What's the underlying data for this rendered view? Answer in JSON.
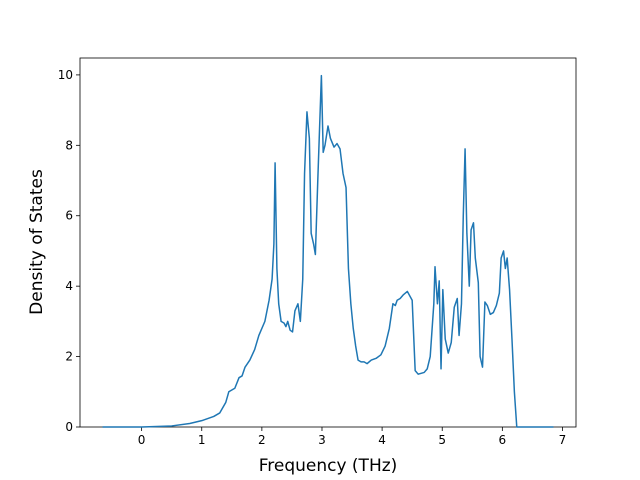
{
  "chart_data": {
    "type": "line",
    "xlabel": "Frequency (THz)",
    "ylabel": "Density of States",
    "xlim": [
      -1.025,
      7.225
    ],
    "xticks": [
      0,
      1,
      2,
      3,
      4,
      5,
      6,
      7
    ],
    "ylim": [
      0,
      10.48
    ],
    "yticks": [
      0,
      2,
      4,
      6,
      8,
      10
    ],
    "series": [
      {
        "color": "#1f77b4",
        "x": [
          -0.65,
          0,
          0.5,
          0.8,
          1.0,
          1.2,
          1.3,
          1.4,
          1.45,
          1.55,
          1.62,
          1.67,
          1.72,
          1.8,
          1.88,
          1.95,
          2.05,
          2.12,
          2.17,
          2.2,
          2.22,
          2.25,
          2.28,
          2.32,
          2.37,
          2.4,
          2.43,
          2.47,
          2.51,
          2.55,
          2.6,
          2.64,
          2.68,
          2.71,
          2.75,
          2.79,
          2.82,
          2.86,
          2.89,
          2.93,
          2.96,
          2.99,
          3.02,
          3.05,
          3.1,
          3.14,
          3.2,
          3.25,
          3.3,
          3.35,
          3.4,
          3.44,
          3.48,
          3.52,
          3.56,
          3.6,
          3.65,
          3.7,
          3.75,
          3.82,
          3.9,
          3.98,
          4.05,
          4.12,
          4.18,
          4.22,
          4.25,
          4.3,
          4.35,
          4.42,
          4.5,
          4.55,
          4.6,
          4.7,
          4.75,
          4.8,
          4.86,
          4.88,
          4.92,
          4.95,
          4.98,
          5.01,
          5.05,
          5.1,
          5.15,
          5.2,
          5.25,
          5.28,
          5.32,
          5.35,
          5.38,
          5.41,
          5.45,
          5.48,
          5.52,
          5.55,
          5.6,
          5.63,
          5.67,
          5.71,
          5.75,
          5.8,
          5.85,
          5.9,
          5.95,
          5.98,
          6.02,
          6.05,
          6.08,
          6.12,
          6.16,
          6.2,
          6.24,
          6.85
        ],
        "values": [
          0,
          0,
          0.03,
          0.1,
          0.18,
          0.3,
          0.4,
          0.7,
          1.0,
          1.1,
          1.4,
          1.45,
          1.7,
          1.9,
          2.2,
          2.6,
          3.0,
          3.6,
          4.2,
          5.2,
          7.5,
          4.5,
          3.5,
          3.0,
          2.95,
          2.85,
          3.0,
          2.75,
          2.7,
          3.3,
          3.5,
          3.0,
          4.2,
          7.2,
          8.95,
          8.2,
          5.5,
          5.2,
          4.9,
          7.0,
          8.5,
          9.98,
          7.8,
          8.0,
          8.55,
          8.2,
          7.95,
          8.05,
          7.9,
          7.2,
          6.8,
          4.5,
          3.5,
          2.8,
          2.3,
          1.9,
          1.85,
          1.85,
          1.8,
          1.9,
          1.95,
          2.05,
          2.3,
          2.8,
          3.5,
          3.45,
          3.6,
          3.65,
          3.75,
          3.85,
          3.6,
          1.6,
          1.5,
          1.55,
          1.65,
          2.0,
          3.5,
          4.55,
          3.5,
          4.15,
          1.65,
          3.9,
          2.5,
          2.1,
          2.4,
          3.4,
          3.65,
          2.6,
          3.5,
          6.0,
          7.9,
          5.5,
          4.0,
          5.6,
          5.8,
          4.8,
          4.1,
          2.0,
          1.7,
          3.55,
          3.45,
          3.2,
          3.25,
          3.45,
          3.8,
          4.8,
          5.0,
          4.5,
          4.8,
          3.9,
          2.5,
          1.0,
          0,
          0
        ]
      }
    ]
  }
}
